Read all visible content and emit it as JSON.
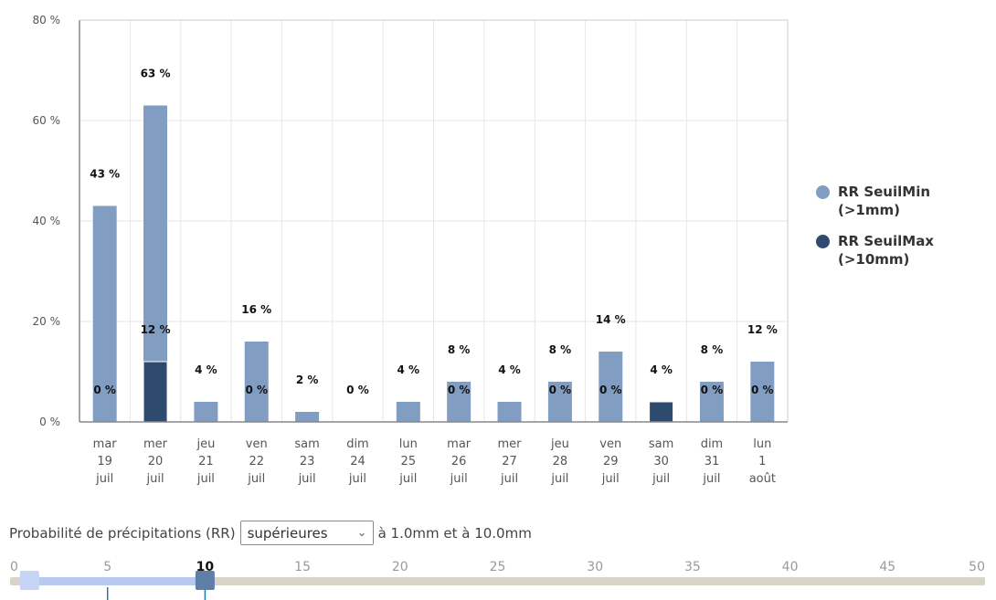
{
  "chart_data": {
    "type": "bar",
    "ylim": [
      0,
      80
    ],
    "yticks": [
      "0 %",
      "20 %",
      "40 %",
      "60 %",
      "80 %"
    ],
    "ytick_values": [
      0,
      20,
      40,
      60,
      80
    ],
    "grid": true,
    "legend_position": "right",
    "categories": [
      [
        "mar",
        "19",
        "juil"
      ],
      [
        "mer",
        "20",
        "juil"
      ],
      [
        "jeu",
        "21",
        "juil"
      ],
      [
        "ven",
        "22",
        "juil"
      ],
      [
        "sam",
        "23",
        "juil"
      ],
      [
        "dim",
        "24",
        "juil"
      ],
      [
        "lun",
        "25",
        "juil"
      ],
      [
        "mar",
        "26",
        "juil"
      ],
      [
        "mer",
        "27",
        "juil"
      ],
      [
        "jeu",
        "28",
        "juil"
      ],
      [
        "ven",
        "29",
        "juil"
      ],
      [
        "sam",
        "30",
        "juil"
      ],
      [
        "dim",
        "31",
        "juil"
      ],
      [
        "lun",
        "1",
        "août"
      ]
    ],
    "series": [
      {
        "name": "RR SeuilMin (>1mm)",
        "name_lines": [
          "RR SeuilMin",
          "(>1mm)"
        ],
        "color": "#819dc2",
        "values": [
          43,
          63,
          4,
          16,
          2,
          0,
          4,
          8,
          4,
          8,
          14,
          4,
          8,
          12
        ],
        "labels": [
          "43 %",
          "63 %",
          "4 %",
          "16 %",
          "2 %",
          "0 %",
          "4 %",
          "8 %",
          "4 %",
          "8 %",
          "14 %",
          "4 %",
          "8 %",
          "12 %"
        ]
      },
      {
        "name": "RR SeuilMax (>10mm)",
        "name_lines": [
          "RR SeuilMax",
          "(>10mm)"
        ],
        "color": "#2e4a6e",
        "values": [
          0,
          12,
          null,
          0,
          null,
          null,
          null,
          0,
          null,
          0,
          0,
          4,
          0,
          0
        ],
        "labels": [
          "0 %",
          "12 %",
          null,
          "0 %",
          null,
          null,
          null,
          "0 %",
          null,
          "0 %",
          "0 %",
          null,
          "0 %",
          "0 %"
        ]
      }
    ]
  },
  "controls": {
    "prefix": "Probabilité de précipitations (RR)",
    "select_value": "supérieures",
    "suffix": "à 1.0mm et à 10.0mm"
  },
  "slider": {
    "ticks": [
      0,
      5,
      10,
      15,
      20,
      25,
      30,
      35,
      40,
      45,
      50
    ],
    "range": [
      0,
      50
    ],
    "low_value": 1,
    "high_value": 10,
    "track_color": "#d8d4c8",
    "fill_color": "#b8c9f0",
    "low_handle_color": "#c6d4f5",
    "high_handle_color": "#5f7fa8",
    "active_tick_color": "#1b7ab8"
  }
}
